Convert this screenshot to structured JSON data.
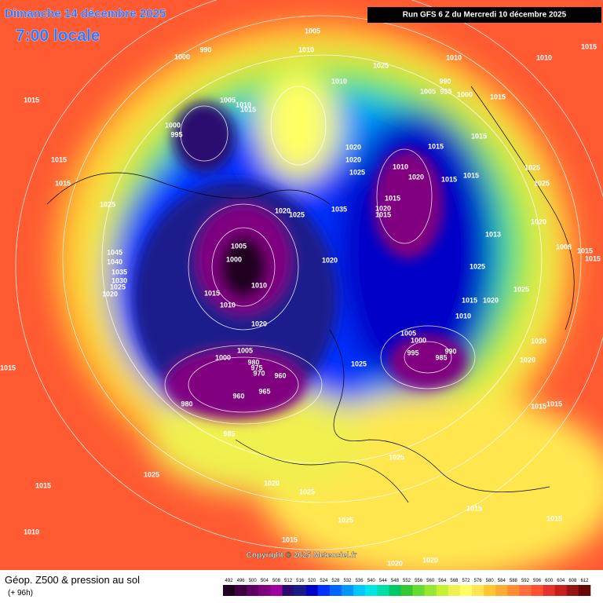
{
  "header": {
    "date": "Dimanche 14 décembre 2025",
    "time": "7:00 locale",
    "run": "Run GFS 6 Z du Mercredi 10 décembre 2025"
  },
  "map": {
    "copyright": "Copyright © 2025 Meteociel.fr",
    "isobar_labels": [
      1005,
      1000,
      990,
      1010,
      1025,
      1010,
      1010,
      1010,
      990,
      1005,
      995,
      1000,
      1015,
      1015,
      1005,
      1010,
      1015,
      1000,
      995,
      1015,
      1015,
      1020,
      1020,
      1015,
      1015,
      1025,
      1010,
      1020,
      1015,
      1015,
      1025,
      1025,
      1025,
      1020,
      1025,
      1035,
      1015,
      1020,
      1015,
      1020,
      1013,
      1008,
      1015,
      1015,
      1045,
      1040,
      1005,
      1000,
      1020,
      1025,
      1035,
      1030,
      1025,
      1020,
      1010,
      1015,
      1010,
      1025,
      1015,
      1020,
      1010,
      1020,
      1005,
      1000,
      995,
      990,
      985,
      1020,
      1005,
      1000,
      980,
      975,
      970,
      960,
      1020,
      1025,
      965,
      960,
      980,
      1015,
      1015,
      1015,
      985,
      1025,
      1025,
      1015,
      1020,
      1025,
      1015,
      1025,
      1010,
      1015,
      1015,
      1020,
      1020,
      1015
    ]
  },
  "footer": {
    "title": "Géop. Z500 & pression au sol",
    "lead": "(+ 96h)"
  },
  "colorbar": {
    "levels": [
      492,
      496,
      500,
      504,
      508,
      512,
      516,
      520,
      524,
      528,
      532,
      536,
      540,
      544,
      548,
      552,
      556,
      560,
      564,
      568,
      572,
      576,
      580,
      584,
      588,
      592,
      596,
      600,
      604,
      608,
      612
    ],
    "colors": [
      "#200020",
      "#400040",
      "#600060",
      "#800080",
      "#a000a0",
      "#2a0a6e",
      "#1a1a8c",
      "#0000c8",
      "#0032ff",
      "#0064ff",
      "#0096ff",
      "#00c8ff",
      "#00e6e6",
      "#00dcaa",
      "#00c864",
      "#32c832",
      "#64dc32",
      "#96e632",
      "#c8f032",
      "#f0f050",
      "#ffff64",
      "#ffe650",
      "#ffc832",
      "#ffaa32",
      "#ff8c32",
      "#ff6e3c",
      "#ff5032",
      "#e63228",
      "#c81e1e",
      "#961414",
      "#640a0a"
    ]
  }
}
